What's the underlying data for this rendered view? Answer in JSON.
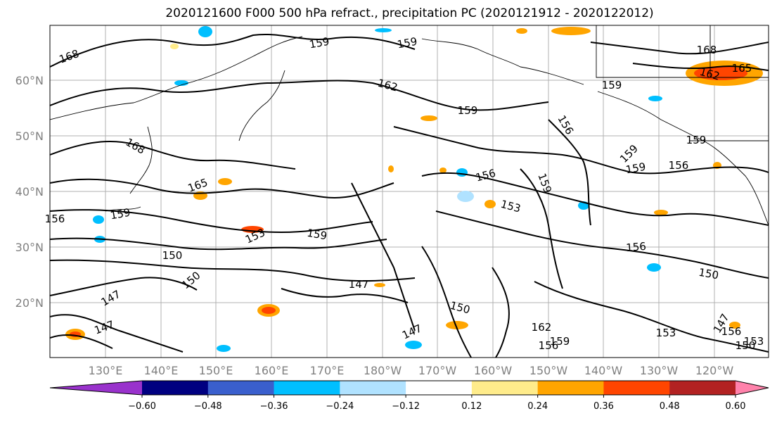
{
  "title": "2020121600 F000 500 hPa refract., precipitation PC (2020121912 - 2020122012)",
  "lat_labels": [
    "60°N",
    "50°N",
    "40°N",
    "30°N",
    "20°N"
  ],
  "lon_labels": [
    "130°E",
    "140°E",
    "150°E",
    "160°E",
    "170°E",
    "180°W",
    "170°W",
    "160°W",
    "150°W",
    "140°W",
    "130°W",
    "120°W"
  ],
  "colorbar": {
    "ticks": [
      "−0.60",
      "−0.48",
      "−0.36",
      "−0.24",
      "−0.12",
      "0.12",
      "0.24",
      "0.36",
      "0.48",
      "0.60"
    ],
    "colors": [
      "#9932cc",
      "#000080",
      "#3a5fcd",
      "#00bfff",
      "#b0e2ff",
      "#ffffff",
      "#ffec8b",
      "#ffa500",
      "#ff4500",
      "#b22222",
      "#ff82ab"
    ]
  },
  "contour_labels": [
    {
      "text": "168"
    },
    {
      "text": "159"
    },
    {
      "text": "159"
    },
    {
      "text": "162"
    },
    {
      "text": "168"
    },
    {
      "text": "162"
    },
    {
      "text": "165"
    },
    {
      "text": "159"
    },
    {
      "text": "159"
    },
    {
      "text": "156"
    },
    {
      "text": "159"
    },
    {
      "text": "159"
    },
    {
      "text": "156"
    },
    {
      "text": "168"
    },
    {
      "text": "165"
    },
    {
      "text": "156"
    },
    {
      "text": "159"
    },
    {
      "text": "153"
    },
    {
      "text": "153"
    },
    {
      "text": "156"
    },
    {
      "text": "159"
    },
    {
      "text": "156"
    },
    {
      "text": "150"
    },
    {
      "text": "150"
    },
    {
      "text": "147"
    },
    {
      "text": "150"
    },
    {
      "text": "147"
    },
    {
      "text": "147"
    },
    {
      "text": "147"
    },
    {
      "text": "150"
    },
    {
      "text": "159"
    },
    {
      "text": "159"
    },
    {
      "text": "162"
    },
    {
      "text": "159"
    },
    {
      "text": "156"
    },
    {
      "text": "153"
    },
    {
      "text": "147"
    },
    {
      "text": "156"
    },
    {
      "text": "153"
    },
    {
      "text": "150"
    }
  ]
}
